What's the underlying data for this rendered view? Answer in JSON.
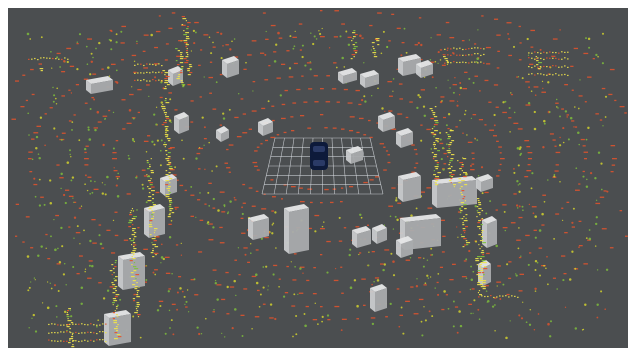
{
  "viewer": {
    "background": "#4b4e50",
    "grid_color": "#d9dde2",
    "ego_vehicle_color": "#0d1a3a",
    "box_color": "#c9cbcd",
    "point_colors": {
      "ground": "#e4532b",
      "low": "#7fc23b",
      "mid": "#d9d92a",
      "high": "#f0e44a"
    }
  }
}
